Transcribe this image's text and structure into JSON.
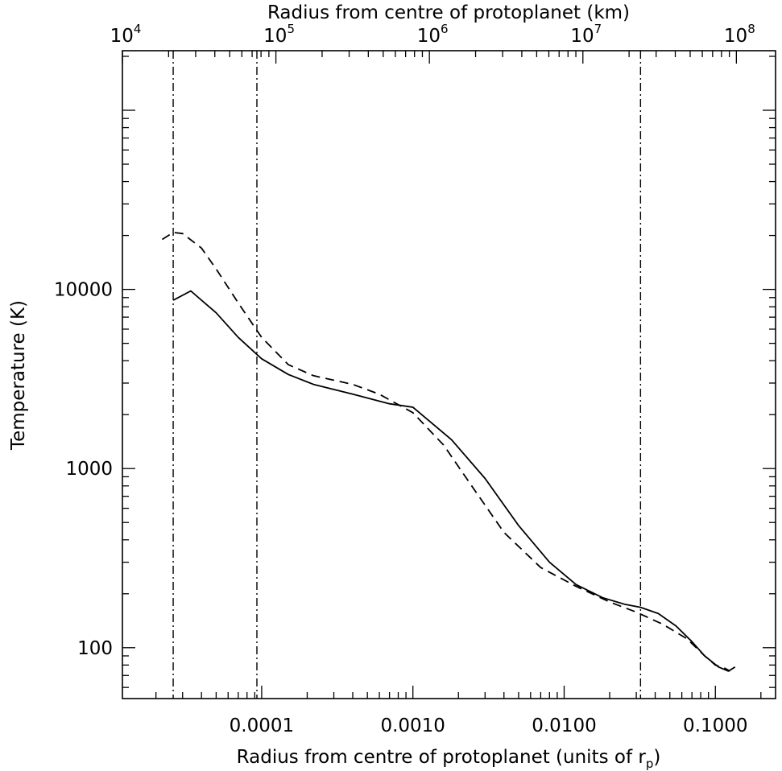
{
  "chart_data": {
    "type": "line",
    "x_scale": "log",
    "y_scale": "log",
    "xlim": [
      1.2e-05,
      0.25
    ],
    "ylim": [
      52,
      215000
    ],
    "top_xlim_km": [
      10000,
      180000000
    ],
    "xlabel_bottom": "Radius from centre of protoplanet (units of r",
    "xlabel_bottom_sub": "p",
    "xlabel_bottom_end": ")",
    "xlabel_top": "Radius from centre of protoplanet (km)",
    "ylabel": "Temperature (K)",
    "bottom_ticks": [
      {
        "value": 0.0001,
        "label": "0.0001"
      },
      {
        "value": 0.001,
        "label": "0.0010"
      },
      {
        "value": 0.01,
        "label": "0.0100"
      },
      {
        "value": 0.1,
        "label": "0.1000"
      }
    ],
    "top_ticks": [
      {
        "value": 10000,
        "base": "10",
        "exp": "4"
      },
      {
        "value": 100000,
        "base": "10",
        "exp": "5"
      },
      {
        "value": 1000000,
        "base": "10",
        "exp": "6"
      },
      {
        "value": 10000000,
        "base": "10",
        "exp": "7"
      },
      {
        "value": 100000000,
        "base": "10",
        "exp": "8"
      }
    ],
    "y_ticks": [
      {
        "value": 100,
        "label": "100"
      },
      {
        "value": 1000,
        "label": "1000"
      },
      {
        "value": 10000,
        "label": "10000"
      }
    ],
    "vertical_lines_x": [
      2.6e-05,
      9.3e-05,
      0.032
    ],
    "grid": false,
    "series": [
      {
        "style": "solid",
        "x": [
          2.6e-05,
          3.4e-05,
          5e-05,
          7e-05,
          0.0001,
          0.00015,
          0.00022,
          0.0004,
          0.0007,
          0.001,
          0.0018,
          0.003,
          0.005,
          0.008,
          0.012,
          0.018,
          0.025,
          0.032,
          0.042,
          0.055,
          0.07,
          0.085,
          0.105,
          0.122,
          0.135
        ],
        "y": [
          8700,
          9800,
          7400,
          5400,
          4100,
          3350,
          2950,
          2600,
          2300,
          2200,
          1450,
          880,
          480,
          300,
          225,
          190,
          175,
          168,
          155,
          132,
          108,
          90,
          78,
          74,
          78
        ]
      },
      {
        "style": "dashed",
        "x": [
          2.2e-05,
          2.6e-05,
          3e-05,
          4e-05,
          5e-05,
          7e-05,
          0.0001,
          0.00015,
          0.00022,
          0.0004,
          0.0006,
          0.001,
          0.0016,
          0.0025,
          0.004,
          0.007,
          0.012,
          0.02,
          0.03,
          0.045,
          0.065,
          0.085,
          0.1,
          0.115,
          0.125
        ],
        "y": [
          19000,
          20800,
          20500,
          17000,
          13000,
          8400,
          5400,
          3800,
          3300,
          2950,
          2600,
          2050,
          1350,
          780,
          440,
          280,
          220,
          180,
          158,
          135,
          112,
          90,
          80,
          77,
          74
        ]
      }
    ]
  }
}
